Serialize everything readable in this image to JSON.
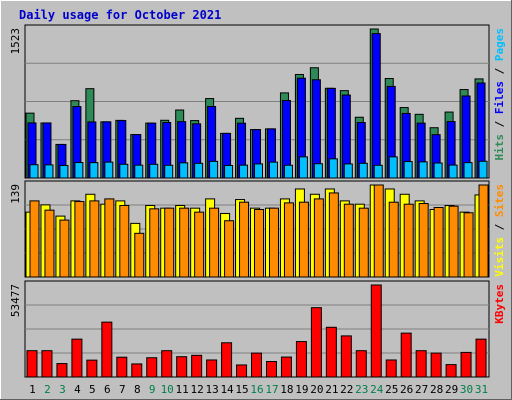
{
  "chart_data": {
    "type": "bar",
    "title": "Daily usage for October 2021",
    "categories": [
      "1",
      "2",
      "3",
      "4",
      "5",
      "6",
      "7",
      "8",
      "9",
      "10",
      "11",
      "12",
      "13",
      "14",
      "15",
      "16",
      "17",
      "18",
      "19",
      "20",
      "21",
      "22",
      "23",
      "24",
      "25",
      "26",
      "27",
      "28",
      "29",
      "30",
      "31"
    ],
    "weekend_days": [
      "2",
      "3",
      "9",
      "10",
      "16",
      "17",
      "23",
      "24",
      "30",
      "31"
    ],
    "panels": [
      {
        "name": "requests",
        "ymax_label": "1523",
        "ylim": [
          0,
          1523
        ],
        "grid": true,
        "right_label": [
          {
            "text": "Hits",
            "color": "#2e8b57"
          },
          {
            "text": " / ",
            "color": "#000000"
          },
          {
            "text": "Files",
            "color": "#0000ff"
          },
          {
            "text": " / ",
            "color": "#000000"
          },
          {
            "text": "Pages",
            "color": "#00bfff"
          }
        ],
        "series": [
          {
            "name": "Hits",
            "color": "#2e8b57",
            "values": [
              663,
              562,
              343,
              790,
              913,
              574,
              589,
              444,
              561,
              590,
              695,
              587,
              812,
              456,
              610,
              495,
              502,
              870,
              1058,
              1127,
              917,
              893,
              621,
              1523,
              1017,
              720,
              651,
              514,
              674,
              904,
              1013
            ]
          },
          {
            "name": "Files",
            "color": "#0000ff",
            "values": [
              563,
              563,
              343,
              730,
              573,
              574,
              587,
              444,
              561,
              567,
              576,
              554,
              731,
              456,
              560,
              495,
              502,
              792,
              1020,
              1004,
              916,
              848,
              567,
              1476,
              936,
              660,
              561,
              443,
              577,
              838,
              971
            ]
          },
          {
            "name": "Pages",
            "color": "#00bfff",
            "values": [
              136,
              134,
              128,
              158,
              157,
              162,
              140,
              131,
              140,
              130,
              155,
              150,
              170,
              128,
              131,
              144,
              162,
              130,
              216,
              146,
              196,
              144,
              150,
              130,
              216,
              168,
              165,
              153,
              132,
              157,
              171
            ]
          }
        ]
      },
      {
        "name": "visits",
        "ymax_label": "139",
        "ylim": [
          0,
          139
        ],
        "grid": true,
        "right_label": [
          {
            "text": "Visits",
            "color": "#ffff00"
          },
          {
            "text": " / ",
            "color": "#000000"
          },
          {
            "text": "Sites",
            "color": "#ff8c00"
          }
        ],
        "series": [
          {
            "name": "Visits",
            "color": "#ffff00",
            "values": [
              98,
              109,
              92,
              115,
              125,
              110,
              115,
              81,
              108,
              104,
              108,
              104,
              118,
              96,
              117,
              104,
              104,
              118,
              133,
              125,
              133,
              115,
              110,
              139,
              133,
              125,
              115,
              102,
              108,
              98,
              124
            ]
          },
          {
            "name": "Sites",
            "color": "#ff8c00",
            "values": [
              115,
              101,
              86,
              114,
              115,
              118,
              108,
              66,
              103,
              104,
              104,
              98,
              104,
              85,
              113,
              102,
              104,
              112,
              113,
              118,
              127,
              110,
              104,
              139,
              113,
              110,
              111,
              105,
              107,
              97,
              139
            ]
          }
        ]
      },
      {
        "name": "volume",
        "ymax_label": "53477",
        "ylim": [
          0,
          53477
        ],
        "grid": true,
        "right_label": [
          {
            "text": "KBytes",
            "color": "#ff0000"
          }
        ],
        "series": [
          {
            "name": "KBytes",
            "color": "#ff0000",
            "values": [
              15300,
              15300,
              7800,
              22000,
              9800,
              31900,
              11500,
              7600,
              11200,
              15300,
              11800,
              12600,
              9900,
              19900,
              7000,
              13900,
              9000,
              11600,
              20600,
              40300,
              28900,
              23900,
              15300,
              53477,
              9900,
              25500,
              15300,
              13900,
              7200,
              14300,
              22000
            ]
          }
        ]
      }
    ]
  }
}
